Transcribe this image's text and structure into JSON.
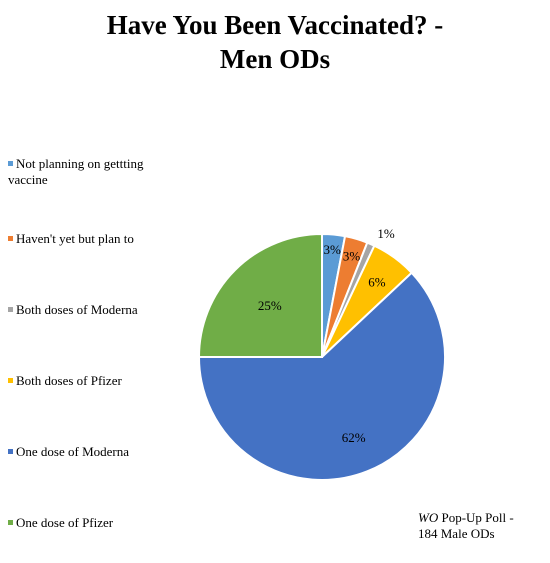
{
  "chart_data": {
    "type": "pie",
    "title": [
      "Have You Been Vaccinated? -",
      "Men ODs"
    ],
    "slices": [
      {
        "label": "Not planning on gettting vaccine",
        "value": 3,
        "display": "3%",
        "color": "#5B9BD5"
      },
      {
        "label": "Haven't yet but plan to",
        "value": 3,
        "display": "3%",
        "color": "#ED7D31"
      },
      {
        "label": "Both doses of Moderna",
        "value": 1,
        "display": "1%",
        "color": "#A5A5A5"
      },
      {
        "label": "Both doses of Pfizer",
        "value": 6,
        "display": "6%",
        "color": "#FFC000"
      },
      {
        "label": "One dose of Moderna",
        "value": 62,
        "display": "62%",
        "color": "#4472C4"
      },
      {
        "label": "One dose of Pfizer",
        "value": 25,
        "display": "25%",
        "color": "#70AD47"
      }
    ],
    "legend_position": "left"
  },
  "legend": [
    {
      "line1": "Not planning on gettting",
      "line2": "vaccine"
    },
    {
      "line1": "Haven't yet but plan to",
      "line2": ""
    },
    {
      "line1": "Both doses of Moderna",
      "line2": ""
    },
    {
      "line1": "Both doses of Pfizer",
      "line2": ""
    },
    {
      "line1": "One dose of Moderna",
      "line2": ""
    },
    {
      "line1": "One dose of Pfizer",
      "line2": ""
    }
  ],
  "footnote": {
    "source_italic": "WO",
    "source_rest": " Pop-Up Poll -",
    "line2": "184 Male ODs"
  }
}
